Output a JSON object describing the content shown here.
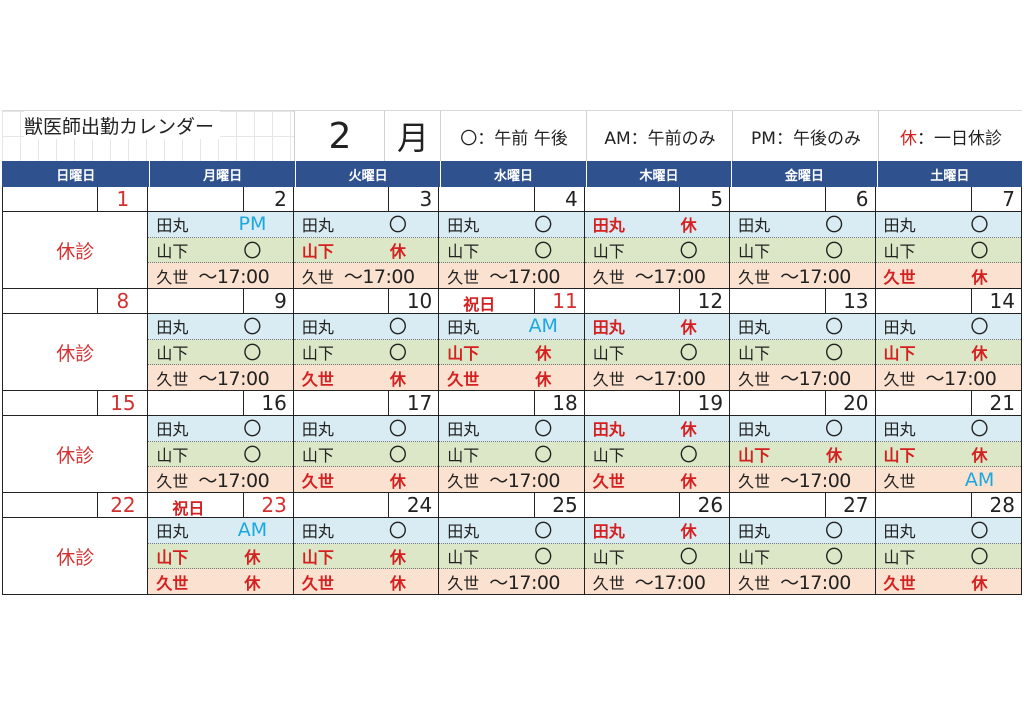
{
  "header": {
    "title": "獣医師出勤カレンダー",
    "month_num": "2",
    "month_char": "月",
    "legend": [
      "〇：午前 午後",
      "AM：午前のみ",
      "PM：午後のみ"
    ],
    "legend_last_key": "休",
    "legend_last_text": "：一日休診"
  },
  "weekdays": [
    "日曜日",
    "月曜日",
    "火曜日",
    "水曜日",
    "木曜日",
    "金曜日",
    "土曜日"
  ],
  "sunday_label": "休診",
  "doctors": [
    "田丸",
    "山下",
    "久世"
  ],
  "weeks": [
    {
      "dates": [
        "1",
        "2",
        "3",
        "4",
        "5",
        "6",
        "7"
      ],
      "holidays": {},
      "status": [
        [
          "PM",
          "〇",
          "〇",
          "休",
          "〇",
          "〇"
        ],
        [
          "〇",
          "休",
          "〇",
          "〇",
          "〇",
          "〇"
        ],
        [
          "～17:00",
          "～17:00",
          "～17:00",
          "～17:00",
          "～17:00",
          "休"
        ]
      ]
    },
    {
      "dates": [
        "8",
        "9",
        "10",
        "11",
        "12",
        "13",
        "14"
      ],
      "holidays": {
        "3": "祝日"
      },
      "status": [
        [
          "〇",
          "〇",
          "AM",
          "休",
          "〇",
          "〇"
        ],
        [
          "〇",
          "〇",
          "休",
          "〇",
          "〇",
          "休"
        ],
        [
          "～17:00",
          "休",
          "休",
          "～17:00",
          "～17:00",
          "～17:00"
        ]
      ]
    },
    {
      "dates": [
        "15",
        "16",
        "17",
        "18",
        "19",
        "20",
        "21"
      ],
      "holidays": {},
      "status": [
        [
          "〇",
          "〇",
          "〇",
          "休",
          "〇",
          "〇"
        ],
        [
          "〇",
          "〇",
          "〇",
          "〇",
          "休",
          "休"
        ],
        [
          "～17:00",
          "休",
          "～17:00",
          "休",
          "～17:00",
          "AM"
        ]
      ]
    },
    {
      "dates": [
        "22",
        "23",
        "24",
        "25",
        "26",
        "27",
        "28"
      ],
      "holidays": {
        "1": "祝日"
      },
      "status": [
        [
          "AM",
          "〇",
          "〇",
          "休",
          "〇",
          "〇"
        ],
        [
          "休",
          "休",
          "〇",
          "〇",
          "〇",
          "〇"
        ],
        [
          "休",
          "休",
          "～17:00",
          "～17:00",
          "～17:00",
          "休"
        ]
      ]
    }
  ],
  "colors": {
    "header_bg": "#2f528f",
    "tamaru_bg": "#d9ecf3",
    "yamashita_bg": "#dbe7c6",
    "kuze_bg": "#fbe1cf",
    "off": "#d42020",
    "ampm": "#1ba8e0"
  }
}
